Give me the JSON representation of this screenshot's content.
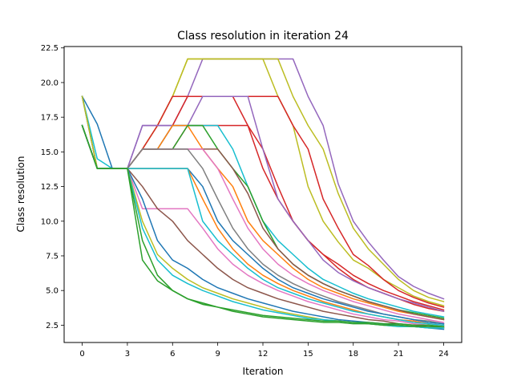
{
  "chart_data": {
    "type": "line",
    "title": "Class resolution in iteration 24",
    "xlabel": "Iteration",
    "ylabel": "Class resolution",
    "xlim": [
      -1.2,
      25.2
    ],
    "ylim": [
      1.25,
      22.6
    ],
    "xticks": [
      0,
      3,
      6,
      9,
      12,
      15,
      18,
      21,
      24
    ],
    "xtick_labels": [
      "0",
      "3",
      "6",
      "9",
      "12",
      "15",
      "18",
      "21",
      "24"
    ],
    "yticks": [
      2.5,
      5.0,
      7.5,
      10.0,
      12.5,
      15.0,
      17.5,
      20.0,
      22.5
    ],
    "ytick_labels": [
      "2.5",
      "5.0",
      "7.5",
      "10.0",
      "12.5",
      "15.0",
      "17.5",
      "20.0",
      "22.5"
    ],
    "grid": false,
    "legend": "none",
    "x": [
      0,
      1,
      2,
      3,
      4,
      5,
      6,
      7,
      8,
      9,
      10,
      11,
      12,
      13,
      14,
      15,
      16,
      17,
      18,
      19,
      20,
      21,
      22,
      23,
      24
    ],
    "series": [
      {
        "color": "#9467bd",
        "values": [
          16.9,
          13.8,
          13.8,
          13.8,
          16.9,
          16.9,
          16.9,
          19.0,
          21.7,
          21.7,
          21.7,
          21.7,
          21.7,
          21.7,
          21.7,
          19.0,
          16.9,
          12.7,
          10.0,
          8.5,
          7.2,
          6.0,
          5.3,
          4.8,
          4.4
        ]
      },
      {
        "color": "#bcbd22",
        "values": [
          16.9,
          13.8,
          13.8,
          13.8,
          15.2,
          16.9,
          19.0,
          21.7,
          21.7,
          21.7,
          21.7,
          21.7,
          21.7,
          21.7,
          19.0,
          16.9,
          15.2,
          12.0,
          9.5,
          8.0,
          6.9,
          5.8,
          5.0,
          4.5,
          4.2
        ]
      },
      {
        "color": "#bcbd22",
        "values": [
          16.9,
          13.8,
          13.8,
          13.8,
          15.2,
          16.9,
          19.0,
          21.7,
          21.7,
          21.7,
          21.7,
          21.7,
          21.7,
          19.0,
          16.9,
          12.5,
          10.0,
          8.5,
          7.2,
          6.6,
          5.8,
          5.2,
          4.6,
          4.2,
          3.9
        ]
      },
      {
        "color": "#d62728",
        "values": [
          19.0,
          13.8,
          13.8,
          13.8,
          15.2,
          16.9,
          19.0,
          19.0,
          19.0,
          19.0,
          19.0,
          19.0,
          19.0,
          19.0,
          16.9,
          15.2,
          11.6,
          9.5,
          7.6,
          6.8,
          5.8,
          5.0,
          4.5,
          4.1,
          3.8
        ]
      },
      {
        "color": "#d62728",
        "values": [
          19.0,
          13.8,
          13.8,
          13.8,
          15.2,
          15.2,
          16.9,
          19.0,
          19.0,
          19.0,
          19.0,
          16.9,
          13.8,
          11.6,
          10.0,
          8.6,
          7.6,
          6.9,
          6.1,
          5.5,
          5.0,
          4.6,
          4.2,
          3.9,
          3.6
        ]
      },
      {
        "color": "#d62728",
        "values": [
          16.9,
          13.8,
          13.8,
          13.8,
          15.2,
          15.2,
          15.2,
          16.9,
          16.9,
          16.9,
          16.9,
          16.9,
          15.2,
          12.5,
          10.0,
          8.6,
          7.6,
          6.6,
          5.8,
          5.2,
          4.8,
          4.4,
          4.0,
          3.7,
          3.5
        ]
      },
      {
        "color": "#9467bd",
        "values": [
          16.9,
          13.8,
          13.8,
          13.8,
          16.9,
          16.9,
          16.9,
          16.9,
          19.0,
          19.0,
          19.0,
          19.0,
          15.2,
          11.6,
          10.0,
          8.6,
          7.2,
          6.3,
          5.7,
          5.2,
          4.8,
          4.4,
          4.1,
          3.8,
          3.5
        ]
      },
      {
        "color": "#17becf",
        "values": [
          19.0,
          14.5,
          13.8,
          13.8,
          15.2,
          15.2,
          16.9,
          16.9,
          16.9,
          16.9,
          15.2,
          12.5,
          10.0,
          8.6,
          7.6,
          6.6,
          5.8,
          5.3,
          4.8,
          4.4,
          4.1,
          3.8,
          3.5,
          3.3,
          3.1
        ]
      },
      {
        "color": "#ff7f0e",
        "values": [
          16.9,
          13.8,
          13.8,
          13.8,
          15.2,
          15.2,
          16.9,
          16.9,
          15.2,
          13.8,
          12.5,
          10.0,
          8.6,
          7.6,
          6.6,
          5.8,
          5.2,
          4.8,
          4.4,
          4.1,
          3.8,
          3.5,
          3.3,
          3.1,
          2.9
        ]
      },
      {
        "color": "#2ca02c",
        "values": [
          16.9,
          13.8,
          13.8,
          13.8,
          15.2,
          15.2,
          15.2,
          16.9,
          16.9,
          15.2,
          13.8,
          12.5,
          10.0,
          8.0,
          6.9,
          6.1,
          5.5,
          5.0,
          4.6,
          4.2,
          3.9,
          3.6,
          3.4,
          3.2,
          3.0
        ]
      },
      {
        "color": "#8c564b",
        "values": [
          16.9,
          13.8,
          13.8,
          13.8,
          15.2,
          15.2,
          15.2,
          15.2,
          15.2,
          15.2,
          13.8,
          12.0,
          9.5,
          8.0,
          6.9,
          6.1,
          5.5,
          5.0,
          4.6,
          4.2,
          3.9,
          3.6,
          3.3,
          3.1,
          2.9
        ]
      },
      {
        "color": "#e377c2",
        "values": [
          16.9,
          13.8,
          13.8,
          13.8,
          15.2,
          15.2,
          15.2,
          15.2,
          15.2,
          13.8,
          11.6,
          9.5,
          8.0,
          6.9,
          6.1,
          5.5,
          5.0,
          4.6,
          4.2,
          3.9,
          3.6,
          3.3,
          3.1,
          2.9,
          2.7
        ]
      },
      {
        "color": "#7f7f7f",
        "values": [
          16.9,
          13.8,
          13.8,
          13.8,
          15.2,
          15.2,
          15.2,
          15.2,
          13.8,
          11.6,
          9.5,
          8.0,
          6.9,
          6.1,
          5.5,
          5.0,
          4.6,
          4.2,
          3.9,
          3.6,
          3.3,
          3.1,
          2.9,
          2.8,
          2.6
        ]
      },
      {
        "color": "#1f77b4",
        "values": [
          19.0,
          17.0,
          13.8,
          13.8,
          13.8,
          13.8,
          13.8,
          13.8,
          12.5,
          10.0,
          8.6,
          7.6,
          6.6,
          5.8,
          5.2,
          4.8,
          4.4,
          4.1,
          3.8,
          3.5,
          3.3,
          3.1,
          2.9,
          2.7,
          2.6
        ]
      },
      {
        "color": "#ff7f0e",
        "values": [
          16.9,
          13.8,
          13.8,
          13.8,
          13.8,
          13.8,
          13.8,
          13.8,
          11.6,
          9.5,
          8.0,
          6.9,
          6.1,
          5.5,
          5.0,
          4.6,
          4.2,
          3.9,
          3.6,
          3.3,
          3.1,
          2.9,
          2.8,
          2.6,
          2.5
        ]
      },
      {
        "color": "#17becf",
        "values": [
          19.0,
          13.8,
          13.8,
          13.8,
          13.8,
          13.8,
          13.8,
          13.8,
          10.0,
          8.6,
          7.6,
          6.6,
          5.8,
          5.2,
          4.8,
          4.4,
          4.1,
          3.8,
          3.5,
          3.3,
          3.1,
          2.9,
          2.7,
          2.6,
          2.5
        ]
      },
      {
        "color": "#e377c2",
        "values": [
          16.9,
          13.8,
          13.8,
          13.8,
          10.9,
          10.9,
          10.9,
          10.9,
          9.5,
          8.0,
          6.9,
          6.1,
          5.5,
          5.0,
          4.6,
          4.2,
          3.9,
          3.6,
          3.3,
          3.1,
          2.9,
          2.8,
          2.6,
          2.5,
          2.4
        ]
      },
      {
        "color": "#8c564b",
        "values": [
          16.9,
          13.8,
          13.8,
          13.8,
          12.5,
          10.9,
          10.0,
          8.6,
          7.6,
          6.6,
          5.8,
          5.2,
          4.8,
          4.4,
          4.1,
          3.8,
          3.5,
          3.3,
          3.1,
          2.9,
          2.8,
          2.6,
          2.5,
          2.4,
          2.3
        ]
      },
      {
        "color": "#1f77b4",
        "values": [
          16.9,
          13.8,
          13.8,
          13.8,
          11.6,
          8.6,
          7.2,
          6.6,
          5.8,
          5.2,
          4.8,
          4.4,
          4.1,
          3.8,
          3.5,
          3.3,
          3.1,
          2.9,
          2.8,
          2.7,
          2.6,
          2.5,
          2.4,
          2.3,
          2.2
        ]
      },
      {
        "color": "#bcbd22",
        "values": [
          19.0,
          13.8,
          13.8,
          13.8,
          10.0,
          7.6,
          6.6,
          5.8,
          5.2,
          4.8,
          4.4,
          4.1,
          3.8,
          3.5,
          3.3,
          3.1,
          2.9,
          2.8,
          2.7,
          2.6,
          2.5,
          2.4,
          2.4,
          2.3,
          2.3
        ]
      },
      {
        "color": "#17becf",
        "values": [
          16.9,
          13.8,
          13.8,
          13.8,
          9.5,
          7.2,
          6.1,
          5.5,
          5.0,
          4.6,
          4.2,
          3.9,
          3.6,
          3.4,
          3.2,
          3.0,
          2.9,
          2.8,
          2.7,
          2.6,
          2.5,
          2.4,
          2.4,
          2.3,
          2.3
        ]
      },
      {
        "color": "#2ca02c",
        "values": [
          16.9,
          13.8,
          13.8,
          13.8,
          7.2,
          5.7,
          5.0,
          4.4,
          4.0,
          3.8,
          3.5,
          3.3,
          3.1,
          3.0,
          2.9,
          2.8,
          2.7,
          2.7,
          2.6,
          2.6,
          2.5,
          2.5,
          2.4,
          2.4,
          2.4
        ]
      },
      {
        "color": "#2ca02c",
        "values": [
          16.9,
          13.8,
          13.8,
          13.8,
          8.6,
          6.1,
          5.0,
          4.4,
          4.1,
          3.8,
          3.6,
          3.4,
          3.2,
          3.1,
          3.0,
          2.9,
          2.8,
          2.8,
          2.7,
          2.7,
          2.6,
          2.6,
          2.5,
          2.5,
          2.4
        ]
      }
    ]
  }
}
